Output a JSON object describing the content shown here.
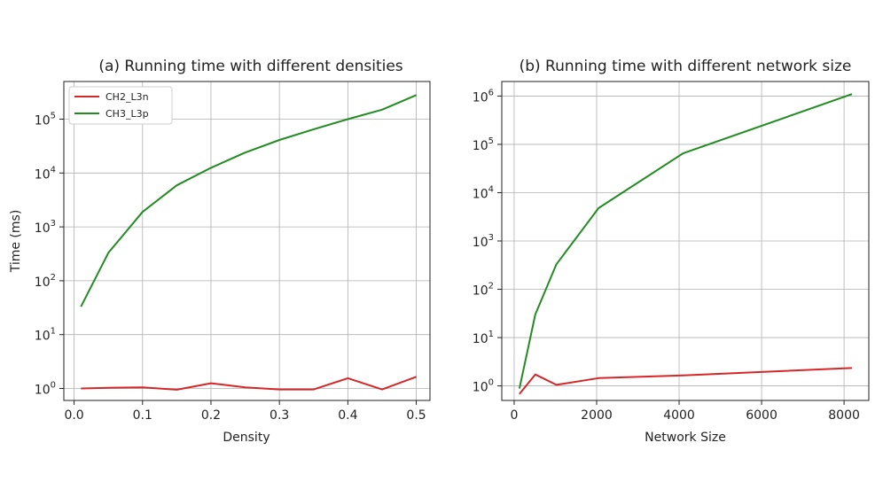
{
  "chart_data": [
    {
      "type": "line",
      "title": "(a) Running time with different densities",
      "xlabel": "Density",
      "ylabel": "Time (ms)",
      "xscale": "linear",
      "yscale": "log",
      "xlim": [
        -0.015,
        0.52
      ],
      "ylim": [
        0.6,
        500000
      ],
      "xticks": [
        0.0,
        0.1,
        0.2,
        0.3,
        0.4,
        0.5
      ],
      "xtick_labels": [
        "0.0",
        "0.1",
        "0.2",
        "0.3",
        "0.4",
        "0.5"
      ],
      "yticks": [
        1,
        10,
        100,
        1000,
        10000,
        100000
      ],
      "ytick_labels": [
        {
          "b": "10",
          "e": "0"
        },
        {
          "b": "10",
          "e": "1"
        },
        {
          "b": "10",
          "e": "2"
        },
        {
          "b": "10",
          "e": "3"
        },
        {
          "b": "10",
          "e": "4"
        },
        {
          "b": "10",
          "e": "5"
        }
      ],
      "grid": true,
      "legend": "top-left",
      "series": [
        {
          "name": "CH2_L3n",
          "color": "#d62728",
          "x": [
            0.01,
            0.05,
            0.1,
            0.15,
            0.2,
            0.25,
            0.3,
            0.35,
            0.4,
            0.45,
            0.5
          ],
          "y": [
            1.0,
            1.03,
            1.05,
            0.95,
            1.25,
            1.05,
            0.96,
            0.96,
            1.55,
            0.96,
            1.65
          ]
        },
        {
          "name": "CH3_L3p",
          "color": "#228b22",
          "x": [
            0.01,
            0.05,
            0.1,
            0.15,
            0.2,
            0.25,
            0.3,
            0.35,
            0.4,
            0.45,
            0.5
          ],
          "y": [
            33,
            330,
            1900,
            5900,
            12500,
            24000,
            41000,
            65000,
            100000,
            150000,
            280000
          ]
        }
      ]
    },
    {
      "type": "line",
      "title": "(b) Running time with different network size",
      "xlabel": "Network Size",
      "ylabel": "",
      "xscale": "linear",
      "yscale": "log",
      "xlim": [
        -300,
        8600
      ],
      "ylim": [
        0.5,
        2000000
      ],
      "xticks": [
        0,
        2000,
        4000,
        6000,
        8000
      ],
      "xtick_labels": [
        "0",
        "2000",
        "4000",
        "6000",
        "8000"
      ],
      "yticks": [
        1,
        10,
        100,
        1000,
        10000,
        100000,
        1000000
      ],
      "ytick_labels": [
        {
          "b": "10",
          "e": "0"
        },
        {
          "b": "10",
          "e": "1"
        },
        {
          "b": "10",
          "e": "2"
        },
        {
          "b": "10",
          "e": "3"
        },
        {
          "b": "10",
          "e": "4"
        },
        {
          "b": "10",
          "e": "5"
        },
        {
          "b": "10",
          "e": "6"
        }
      ],
      "grid": true,
      "series": [
        {
          "name": "CH2_L3n",
          "color": "#d62728",
          "x": [
            128,
            512,
            1024,
            2048,
            4096,
            8192
          ],
          "y": [
            0.68,
            1.72,
            1.05,
            1.45,
            1.65,
            2.35
          ]
        },
        {
          "name": "CH3_L3p",
          "color": "#228b22",
          "x": [
            128,
            512,
            1024,
            2048,
            4096,
            8192
          ],
          "y": [
            0.88,
            30,
            330,
            4800,
            65000,
            1100000
          ]
        }
      ]
    }
  ]
}
